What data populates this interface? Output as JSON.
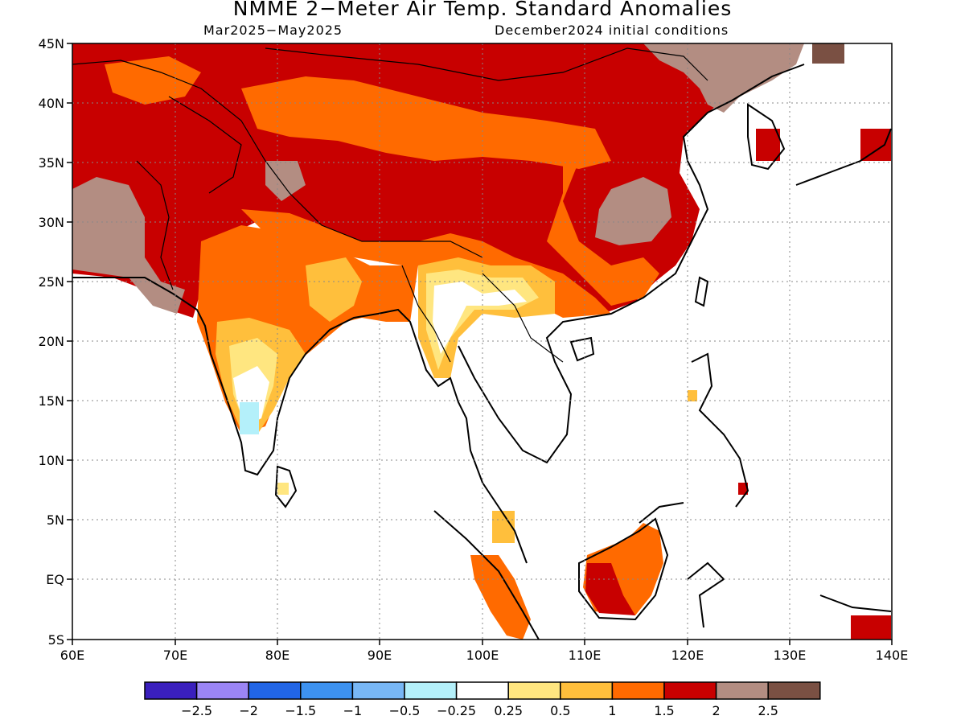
{
  "title": "NMME 2−Meter Air Temp. Standard Anomalies",
  "subtitle_left": "Mar2025−May2025",
  "subtitle_right": "December2024 initial conditions",
  "map": {
    "lon_range": [
      60,
      140
    ],
    "lat_range": [
      -5,
      45
    ],
    "lon_ticks": [
      "60E",
      "70E",
      "80E",
      "90E",
      "100E",
      "110E",
      "120E",
      "130E",
      "140E"
    ],
    "lat_ticks": [
      "45N",
      "40N",
      "35N",
      "30N",
      "25N",
      "20N",
      "15N",
      "10N",
      "5N",
      "EQ",
      "5S"
    ],
    "grid": "dotted"
  },
  "legend": {
    "bins": [
      {
        "color": "#3a1fbd"
      },
      {
        "color": "#9b85f5"
      },
      {
        "color": "#2165e6"
      },
      {
        "color": "#3d92f0"
      },
      {
        "color": "#78b7f5"
      },
      {
        "color": "#b4f0fa"
      },
      {
        "color": "#ffffff"
      },
      {
        "color": "#ffe680"
      },
      {
        "color": "#ffbf3c"
      },
      {
        "color": "#ff6a00"
      },
      {
        "color": "#c80000"
      },
      {
        "color": "#b38d82"
      },
      {
        "color": "#7a5043"
      }
    ],
    "labels": [
      "−2.5",
      "−2",
      "−1.5",
      "−1",
      "−0.5",
      "−0.25",
      "0.25",
      "0.5",
      "1",
      "1.5",
      "2",
      "2.5"
    ]
  }
}
